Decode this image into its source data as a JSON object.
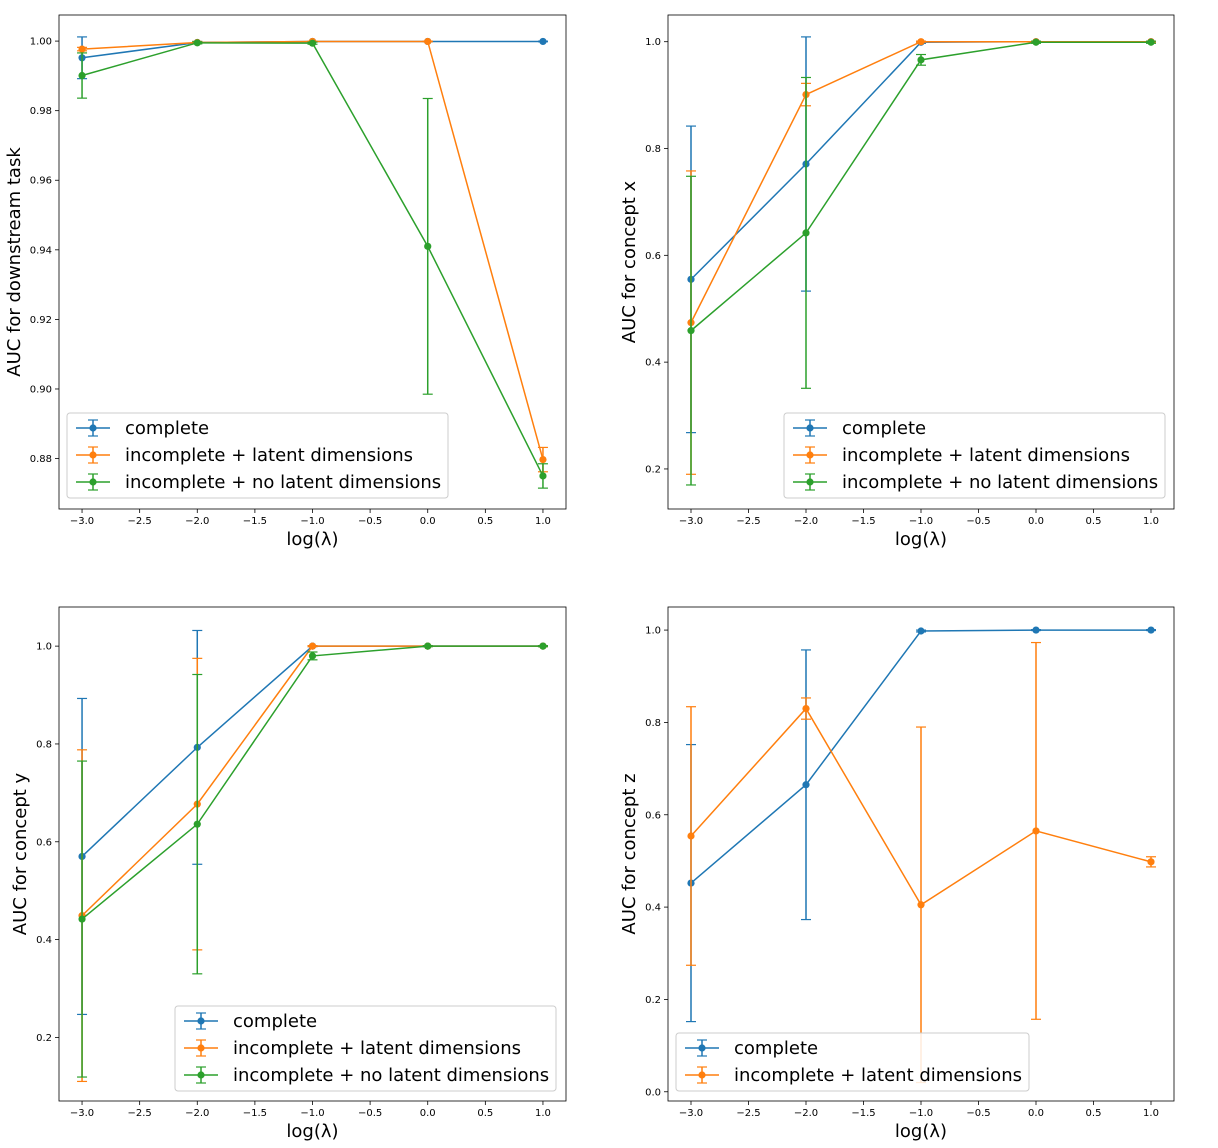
{
  "colors": {
    "complete": "#1f77b4",
    "latent": "#ff7f0e",
    "no_latent": "#2ca02c"
  },
  "chart_data": [
    {
      "type": "line",
      "title": "",
      "xlabel": "log(λ)",
      "ylabel": "AUC for downstream task",
      "x": [
        -3.0,
        -2.0,
        -1.0,
        0.0,
        1.0
      ],
      "xlim": [
        -3.2,
        1.2
      ],
      "ylim": [
        0.8655,
        1.0075
      ],
      "xticks": [
        -3.0,
        -2.5,
        -2.0,
        -1.5,
        -1.0,
        -0.5,
        0.0,
        0.5,
        1.0
      ],
      "xtick_labels": [
        "−3.0",
        "−2.5",
        "−2.0",
        "−1.5",
        "−1.0",
        "−0.5",
        "0.0",
        "0.5",
        "1.0"
      ],
      "yticks": [
        0.88,
        0.9,
        0.92,
        0.94,
        0.96,
        0.98,
        1.0
      ],
      "ytick_labels": [
        "0.88",
        "0.90",
        "0.92",
        "0.94",
        "0.96",
        "0.98",
        "1.00"
      ],
      "legend": "lower-left",
      "grid": false,
      "series": [
        {
          "name": "complete",
          "color_key": "complete",
          "values": [
            0.9952,
            0.9996,
            0.9999,
            0.9999,
            0.9999
          ],
          "errors": [
            0.006,
            0.0003,
            0.0001,
            0.0001,
            0.0001
          ]
        },
        {
          "name": "incomplete + latent dimensions",
          "color_key": "latent",
          "values": [
            0.9977,
            0.9996,
            0.9999,
            0.9999,
            0.8797
          ],
          "errors": [
            0.0005,
            0.0003,
            0.0001,
            0.0001,
            0.0035
          ]
        },
        {
          "name": "incomplete + no latent dimensions",
          "color_key": "no_latent",
          "values": [
            0.9901,
            0.9995,
            0.9994,
            0.941,
            0.875
          ],
          "errors": [
            0.0065,
            0.0003,
            0.0003,
            0.0425,
            0.0035
          ]
        }
      ]
    },
    {
      "type": "line",
      "title": "",
      "xlabel": "log(λ)",
      "ylabel": "AUC for concept x",
      "x": [
        -3.0,
        -2.0,
        -1.0,
        0.0,
        1.0
      ],
      "xlim": [
        -3.2,
        1.2
      ],
      "ylim": [
        0.125,
        1.05
      ],
      "xticks": [
        -3.0,
        -2.5,
        -2.0,
        -1.5,
        -1.0,
        -0.5,
        0.0,
        0.5,
        1.0
      ],
      "xtick_labels": [
        "−3.0",
        "−2.5",
        "−2.0",
        "−1.5",
        "−1.0",
        "−0.5",
        "0.0",
        "0.5",
        "1.0"
      ],
      "yticks": [
        0.2,
        0.4,
        0.6,
        0.8,
        1.0
      ],
      "ytick_labels": [
        "0.2",
        "0.4",
        "0.6",
        "0.8",
        "1.0"
      ],
      "legend": "lower-right",
      "grid": false,
      "series": [
        {
          "name": "complete",
          "color_key": "complete",
          "values": [
            0.555,
            0.771,
            0.999,
            1.0,
            1.0
          ],
          "errors": [
            0.287,
            0.238,
            0.002,
            0.001,
            0.001
          ]
        },
        {
          "name": "incomplete + latent dimensions",
          "color_key": "latent",
          "values": [
            0.474,
            0.901,
            1.0,
            1.0,
            1.0
          ],
          "errors": [
            0.284,
            0.021,
            0.001,
            0.001,
            0.001
          ]
        },
        {
          "name": "incomplete + no latent dimensions",
          "color_key": "no_latent",
          "values": [
            0.459,
            0.642,
            0.966,
            0.999,
            0.999
          ],
          "errors": [
            0.289,
            0.291,
            0.01,
            0.002,
            0.002
          ]
        }
      ]
    },
    {
      "type": "line",
      "title": "",
      "xlabel": "log(λ)",
      "ylabel": "AUC for concept y",
      "x": [
        -3.0,
        -2.0,
        -1.0,
        0.0,
        1.0
      ],
      "xlim": [
        -3.2,
        1.2
      ],
      "ylim": [
        0.07,
        1.08
      ],
      "xticks": [
        -3.0,
        -2.5,
        -2.0,
        -1.5,
        -1.0,
        -0.5,
        0.0,
        0.5,
        1.0
      ],
      "xtick_labels": [
        "−3.0",
        "−2.5",
        "−2.0",
        "−1.5",
        "−1.0",
        "−0.5",
        "0.0",
        "0.5",
        "1.0"
      ],
      "yticks": [
        0.2,
        0.4,
        0.6,
        0.8,
        1.0
      ],
      "ytick_labels": [
        "0.2",
        "0.4",
        "0.6",
        "0.8",
        "1.0"
      ],
      "legend": "lower-right",
      "grid": false,
      "series": [
        {
          "name": "complete",
          "color_key": "complete",
          "values": [
            0.57,
            0.793,
            1.0,
            1.0,
            1.0
          ],
          "errors": [
            0.323,
            0.239,
            0.001,
            0.001,
            0.001
          ]
        },
        {
          "name": "incomplete + latent dimensions",
          "color_key": "latent",
          "values": [
            0.449,
            0.677,
            1.0,
            1.0,
            1.0
          ],
          "errors": [
            0.339,
            0.298,
            0.001,
            0.001,
            0.001
          ]
        },
        {
          "name": "incomplete + no latent dimensions",
          "color_key": "no_latent",
          "values": [
            0.442,
            0.636,
            0.98,
            1.0,
            1.0
          ],
          "errors": [
            0.323,
            0.306,
            0.008,
            0.001,
            0.001
          ]
        }
      ]
    },
    {
      "type": "line",
      "title": "",
      "xlabel": "log(λ)",
      "ylabel": "AUC for concept z",
      "x": [
        -3.0,
        -2.0,
        -1.0,
        0.0,
        1.0
      ],
      "xlim": [
        -3.2,
        1.2
      ],
      "ylim": [
        -0.02,
        1.05
      ],
      "xticks": [
        -3.0,
        -2.5,
        -2.0,
        -1.5,
        -1.0,
        -0.5,
        0.0,
        0.5,
        1.0
      ],
      "xtick_labels": [
        "−3.0",
        "−2.5",
        "−2.0",
        "−1.5",
        "−1.0",
        "−0.5",
        "0.0",
        "0.5",
        "1.0"
      ],
      "yticks": [
        0.0,
        0.2,
        0.4,
        0.6,
        0.8,
        1.0
      ],
      "ytick_labels": [
        "0.0",
        "0.2",
        "0.4",
        "0.6",
        "0.8",
        "1.0"
      ],
      "legend": "lower-left",
      "grid": false,
      "series": [
        {
          "name": "complete",
          "color_key": "complete",
          "values": [
            0.452,
            0.665,
            0.998,
            1.0,
            1.0
          ],
          "errors": [
            0.3,
            0.292,
            0.002,
            0.001,
            0.001
          ]
        },
        {
          "name": "incomplete + latent dimensions",
          "color_key": "latent",
          "values": [
            0.554,
            0.83,
            0.405,
            0.565,
            0.498
          ],
          "errors": [
            0.28,
            0.023,
            0.385,
            0.408,
            0.011
          ]
        }
      ]
    }
  ]
}
